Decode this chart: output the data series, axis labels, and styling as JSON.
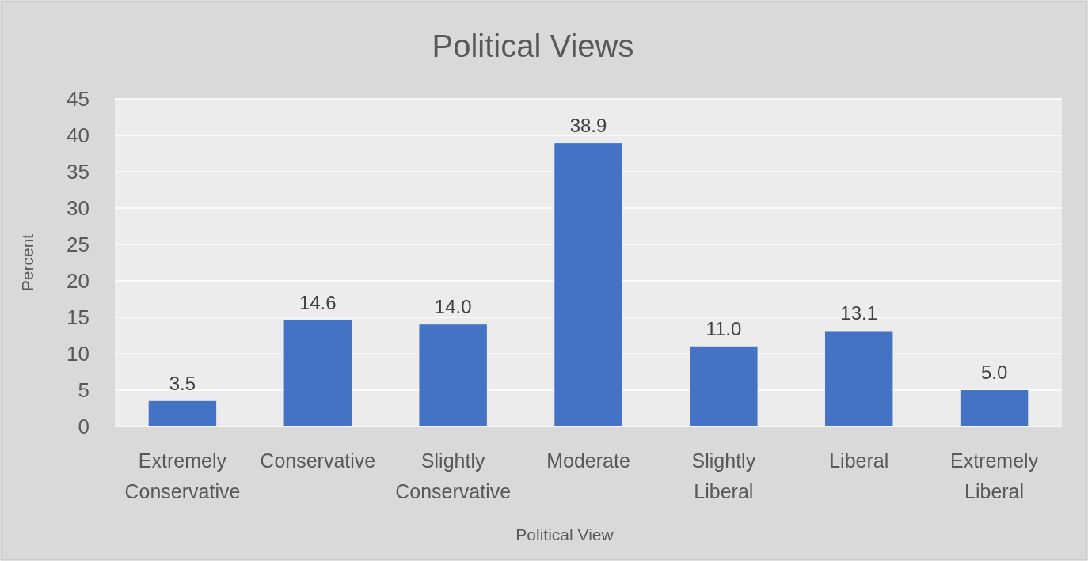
{
  "chart_data": {
    "type": "bar",
    "title": "Political Views",
    "xlabel": "Political View",
    "ylabel": "Percent",
    "categories": [
      "Extremely Conservative",
      "Conservative",
      "Slightly Conservative",
      "Moderate",
      "Slightly Liberal",
      "Liberal",
      "Extremely Liberal"
    ],
    "values": [
      3.5,
      14.6,
      14.0,
      38.9,
      11.0,
      13.1,
      5.0
    ],
    "value_labels": [
      "3.5",
      "14.6",
      "14.0",
      "38.9",
      "11.0",
      "13.1",
      "5.0"
    ],
    "color": "#4472c4",
    "ylim": [
      0,
      45
    ],
    "yticks": [
      0,
      5,
      10,
      15,
      20,
      25,
      30,
      35,
      40,
      45
    ],
    "grid": "y"
  }
}
